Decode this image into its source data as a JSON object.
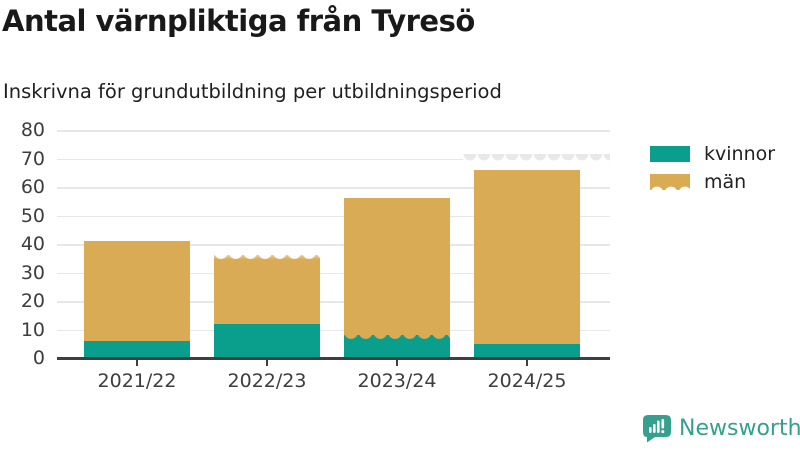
{
  "header": {
    "title": "Antal värnpliktiga från Tyresö",
    "subtitle": "Inskrivna för grundutbildning per utbildningsperiod"
  },
  "footer": {
    "brand": "Newsworthy",
    "brand_color": "#35a08e",
    "logo_icon": "speech-bubble-bar-chart-icon"
  },
  "chart_data": {
    "type": "bar",
    "stacked": true,
    "title": "Antal värnpliktiga från Tyresö",
    "subtitle": "Inskrivna för grundutbildning per utbildningsperiod",
    "categories": [
      "2021/22",
      "2022/23",
      "2023/24",
      "2024/25"
    ],
    "series": [
      {
        "name": "kvinnor",
        "color": "#0a9e8d",
        "values": [
          6,
          12,
          8,
          5
        ]
      },
      {
        "name": "män",
        "color": "#d9ab55",
        "values": [
          35,
          24,
          48,
          61
        ]
      }
    ],
    "stack_totals": [
      41,
      36,
      56,
      66
    ],
    "ylim": [
      0,
      80
    ],
    "yticks": [
      0,
      10,
      20,
      30,
      40,
      50,
      60,
      70,
      80
    ],
    "grid": true,
    "legend_position": "right",
    "preliminary_fade": {
      "total_top": [
        false,
        true,
        false,
        false
      ],
      "kvinnor_top": [
        false,
        false,
        true,
        false
      ],
      "ghost_band": {
        "category_index": 3,
        "value": 70
      }
    }
  }
}
